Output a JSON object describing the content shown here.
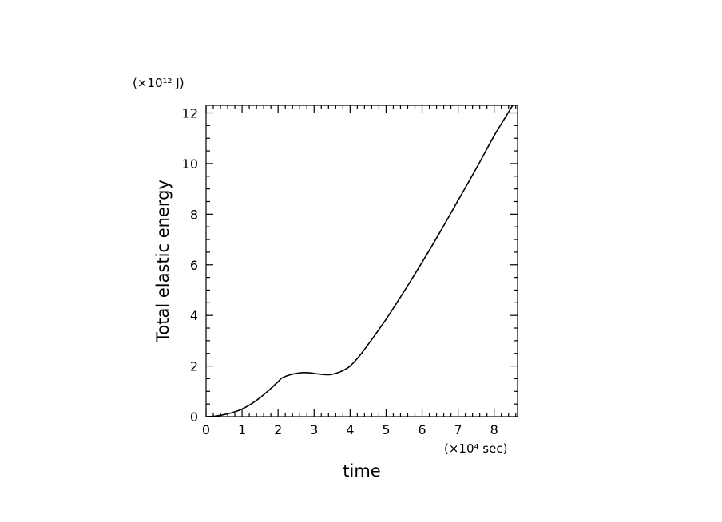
{
  "chart_data": {
    "type": "line",
    "title": "",
    "xlabel": "time",
    "ylabel": "Total elastic energy",
    "x_unit_label": "(×10⁴ sec)",
    "y_unit_label": "(×10¹² J)",
    "xlim": [
      0,
      8.65
    ],
    "ylim": [
      0,
      12.3
    ],
    "xticks": [
      0,
      1,
      2,
      3,
      4,
      5,
      6,
      7,
      8
    ],
    "yticks": [
      0,
      2,
      4,
      6,
      8,
      10,
      12
    ],
    "grid": false,
    "legend": "none",
    "line_color": "#000000",
    "series": [
      {
        "x": [
          0,
          0.25,
          0.5,
          0.75,
          1.0,
          1.25,
          1.5,
          1.75,
          2.0,
          2.1,
          2.3,
          2.5,
          2.7,
          2.9,
          3.1,
          3.3,
          3.45,
          3.6,
          3.8,
          4.0,
          4.25,
          4.5,
          5.0,
          5.5,
          6.0,
          6.5,
          7.0,
          7.5,
          8.0,
          8.3,
          8.6
        ],
        "y": [
          0,
          0.02,
          0.08,
          0.17,
          0.3,
          0.5,
          0.75,
          1.05,
          1.38,
          1.52,
          1.64,
          1.71,
          1.74,
          1.73,
          1.69,
          1.66,
          1.66,
          1.71,
          1.82,
          2.0,
          2.38,
          2.85,
          3.85,
          4.95,
          6.1,
          7.3,
          8.55,
          9.8,
          11.1,
          11.8,
          12.5
        ]
      }
    ]
  }
}
